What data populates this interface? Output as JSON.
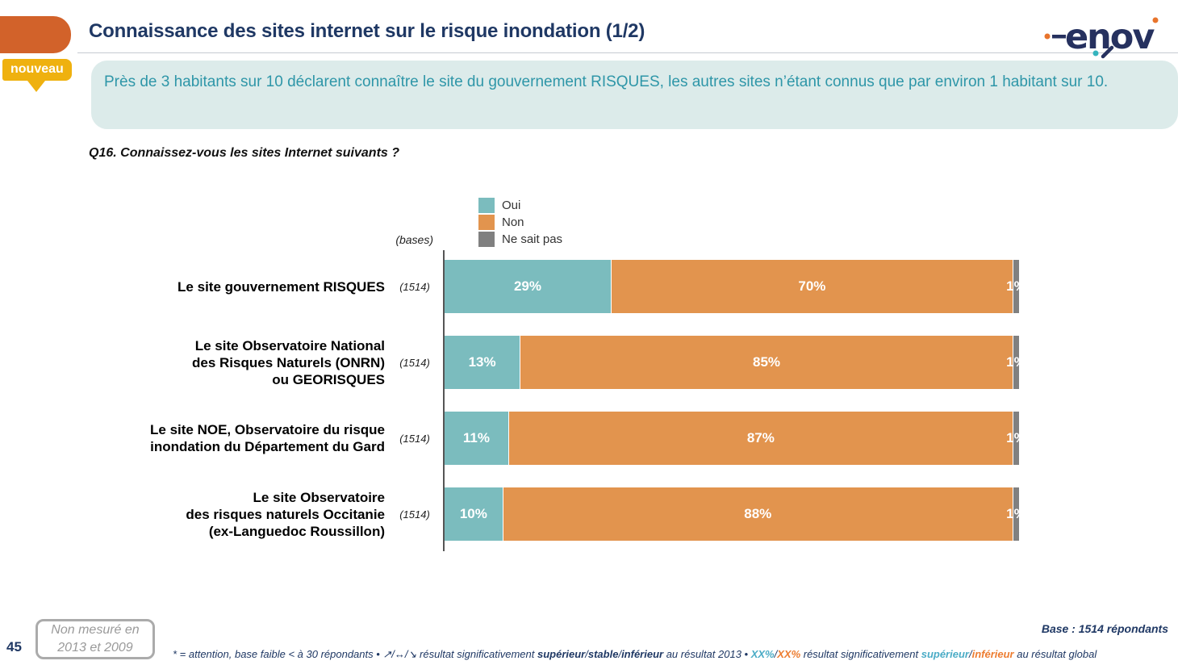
{
  "page": {
    "number": "45"
  },
  "header": {
    "title": "Connaissance des sites internet sur le risque inondation (1/2)",
    "badge": "nouveau",
    "summary": "Près de 3 habitants sur 10 déclarent connaître le site du gouvernement RISQUES, les autres sites n’étant connus que par environ 1 habitant sur 10.",
    "logo_text": "enov"
  },
  "question": "Q16. Connaissez-vous les sites Internet suivants ?",
  "chart_data": {
    "type": "bar",
    "orientation": "horizontal",
    "stacked": true,
    "grid": false,
    "legend_position": "top",
    "bases_label": "(bases)",
    "value_suffix": "%",
    "xlim": [
      0,
      100
    ],
    "categories": [
      "Le site gouvernement RISQUES",
      "Le site Observatoire National\ndes Risques Naturels (ONRN)\nou GEORISQUES",
      "Le site NOE, Observatoire du risque\ninondation du Département du Gard",
      "Le site Observatoire\ndes risques naturels Occitanie\n(ex-Languedoc Roussillon)"
    ],
    "bases": [
      "(1514)",
      "(1514)",
      "(1514)",
      "(1514)"
    ],
    "series": [
      {
        "name": "Oui",
        "color": "#7BBCBE",
        "values": [
          29,
          13,
          11,
          10
        ]
      },
      {
        "name": "Non",
        "color": "#E2944E",
        "values": [
          70,
          85,
          87,
          88
        ]
      },
      {
        "name": "Ne sait pas",
        "color": "#808080",
        "values": [
          1,
          1,
          1,
          1
        ]
      }
    ]
  },
  "footer": {
    "not_measured": "Non mesuré en\n2013 et 2009",
    "base_note": "Base : 1514 répondants",
    "footnote_parts": [
      {
        "text": "* = attention, base faible < à 30 répondants • ",
        "style": "plain"
      },
      {
        "text": "↗/↔/↘ résultat significativement ",
        "style": "plain"
      },
      {
        "text": "supérieur",
        "style": "bold"
      },
      {
        "text": "/",
        "style": "plain"
      },
      {
        "text": "stable",
        "style": "bold"
      },
      {
        "text": "/",
        "style": "plain"
      },
      {
        "text": "inférieur",
        "style": "bold"
      },
      {
        "text": " au résultat 2013 • ",
        "style": "plain"
      },
      {
        "text": "XX%",
        "style": "teal"
      },
      {
        "text": "/",
        "style": "plain"
      },
      {
        "text": "XX%",
        "style": "orange"
      },
      {
        "text": " résultat significativement ",
        "style": "plain"
      },
      {
        "text": "supérieur",
        "style": "teal"
      },
      {
        "text": "/",
        "style": "plain"
      },
      {
        "text": "inférieur",
        "style": "orange"
      },
      {
        "text": " au résultat global",
        "style": "plain"
      }
    ]
  },
  "colors": {
    "navy": "#1F3864",
    "header_accent": "#D2622A",
    "badge_gold": "#EFB10F",
    "banner_bg": "#DCEBEA",
    "banner_text": "#2E96A8",
    "bar_oui": "#7BBCBE",
    "bar_non": "#E2944E",
    "bar_nsp": "#808080",
    "footnote_teal": "#4BACC6",
    "footnote_orange": "#ED7D31"
  }
}
